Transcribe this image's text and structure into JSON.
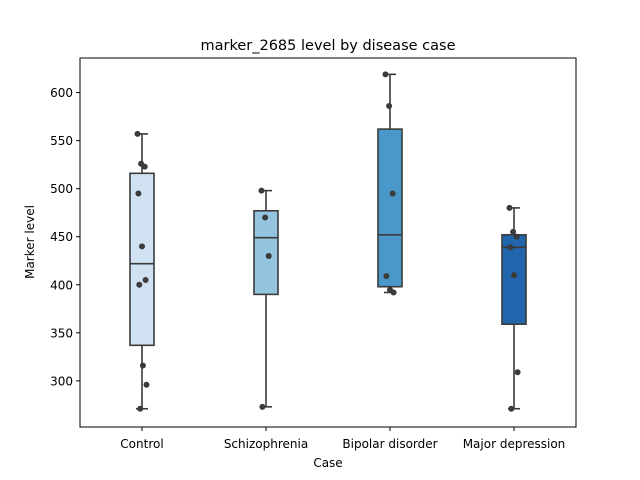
{
  "chart_data": {
    "type": "box",
    "title": "marker_2685 level by disease case",
    "xlabel": "Case",
    "ylabel": "Marker level",
    "ylim": [
      252,
      636
    ],
    "yticks": [
      300,
      350,
      400,
      450,
      500,
      550,
      600
    ],
    "grid": false,
    "legend": "none",
    "categories": [
      "Control",
      "Schizophrenia",
      "Bipolar disorder",
      "Major depression"
    ],
    "series": [
      {
        "category": "Control",
        "color": "#d0e1f2",
        "whisker_low": 271,
        "q1": 337,
        "median": 422,
        "q3": 516,
        "whisker_high": 557,
        "points": [
          557,
          526,
          523,
          495,
          440,
          405,
          400,
          316,
          296,
          271
        ]
      },
      {
        "category": "Schizophrenia",
        "color": "#94c4df",
        "whisker_low": 273,
        "q1": 390,
        "median": 449,
        "q3": 477,
        "whisker_high": 498,
        "points": [
          498,
          470,
          430,
          273
        ]
      },
      {
        "category": "Bipolar disorder",
        "color": "#4a98c9",
        "whisker_low": 392,
        "q1": 398,
        "median": 452,
        "q3": 562,
        "whisker_high": 619,
        "points": [
          619,
          586,
          495,
          409,
          395,
          392
        ]
      },
      {
        "category": "Major depression",
        "color": "#2166ac",
        "whisker_low": 271,
        "q1": 359,
        "median": 439,
        "q3": 452,
        "whisker_high": 480,
        "points": [
          480,
          455,
          450,
          439,
          410,
          309,
          271
        ]
      }
    ]
  }
}
